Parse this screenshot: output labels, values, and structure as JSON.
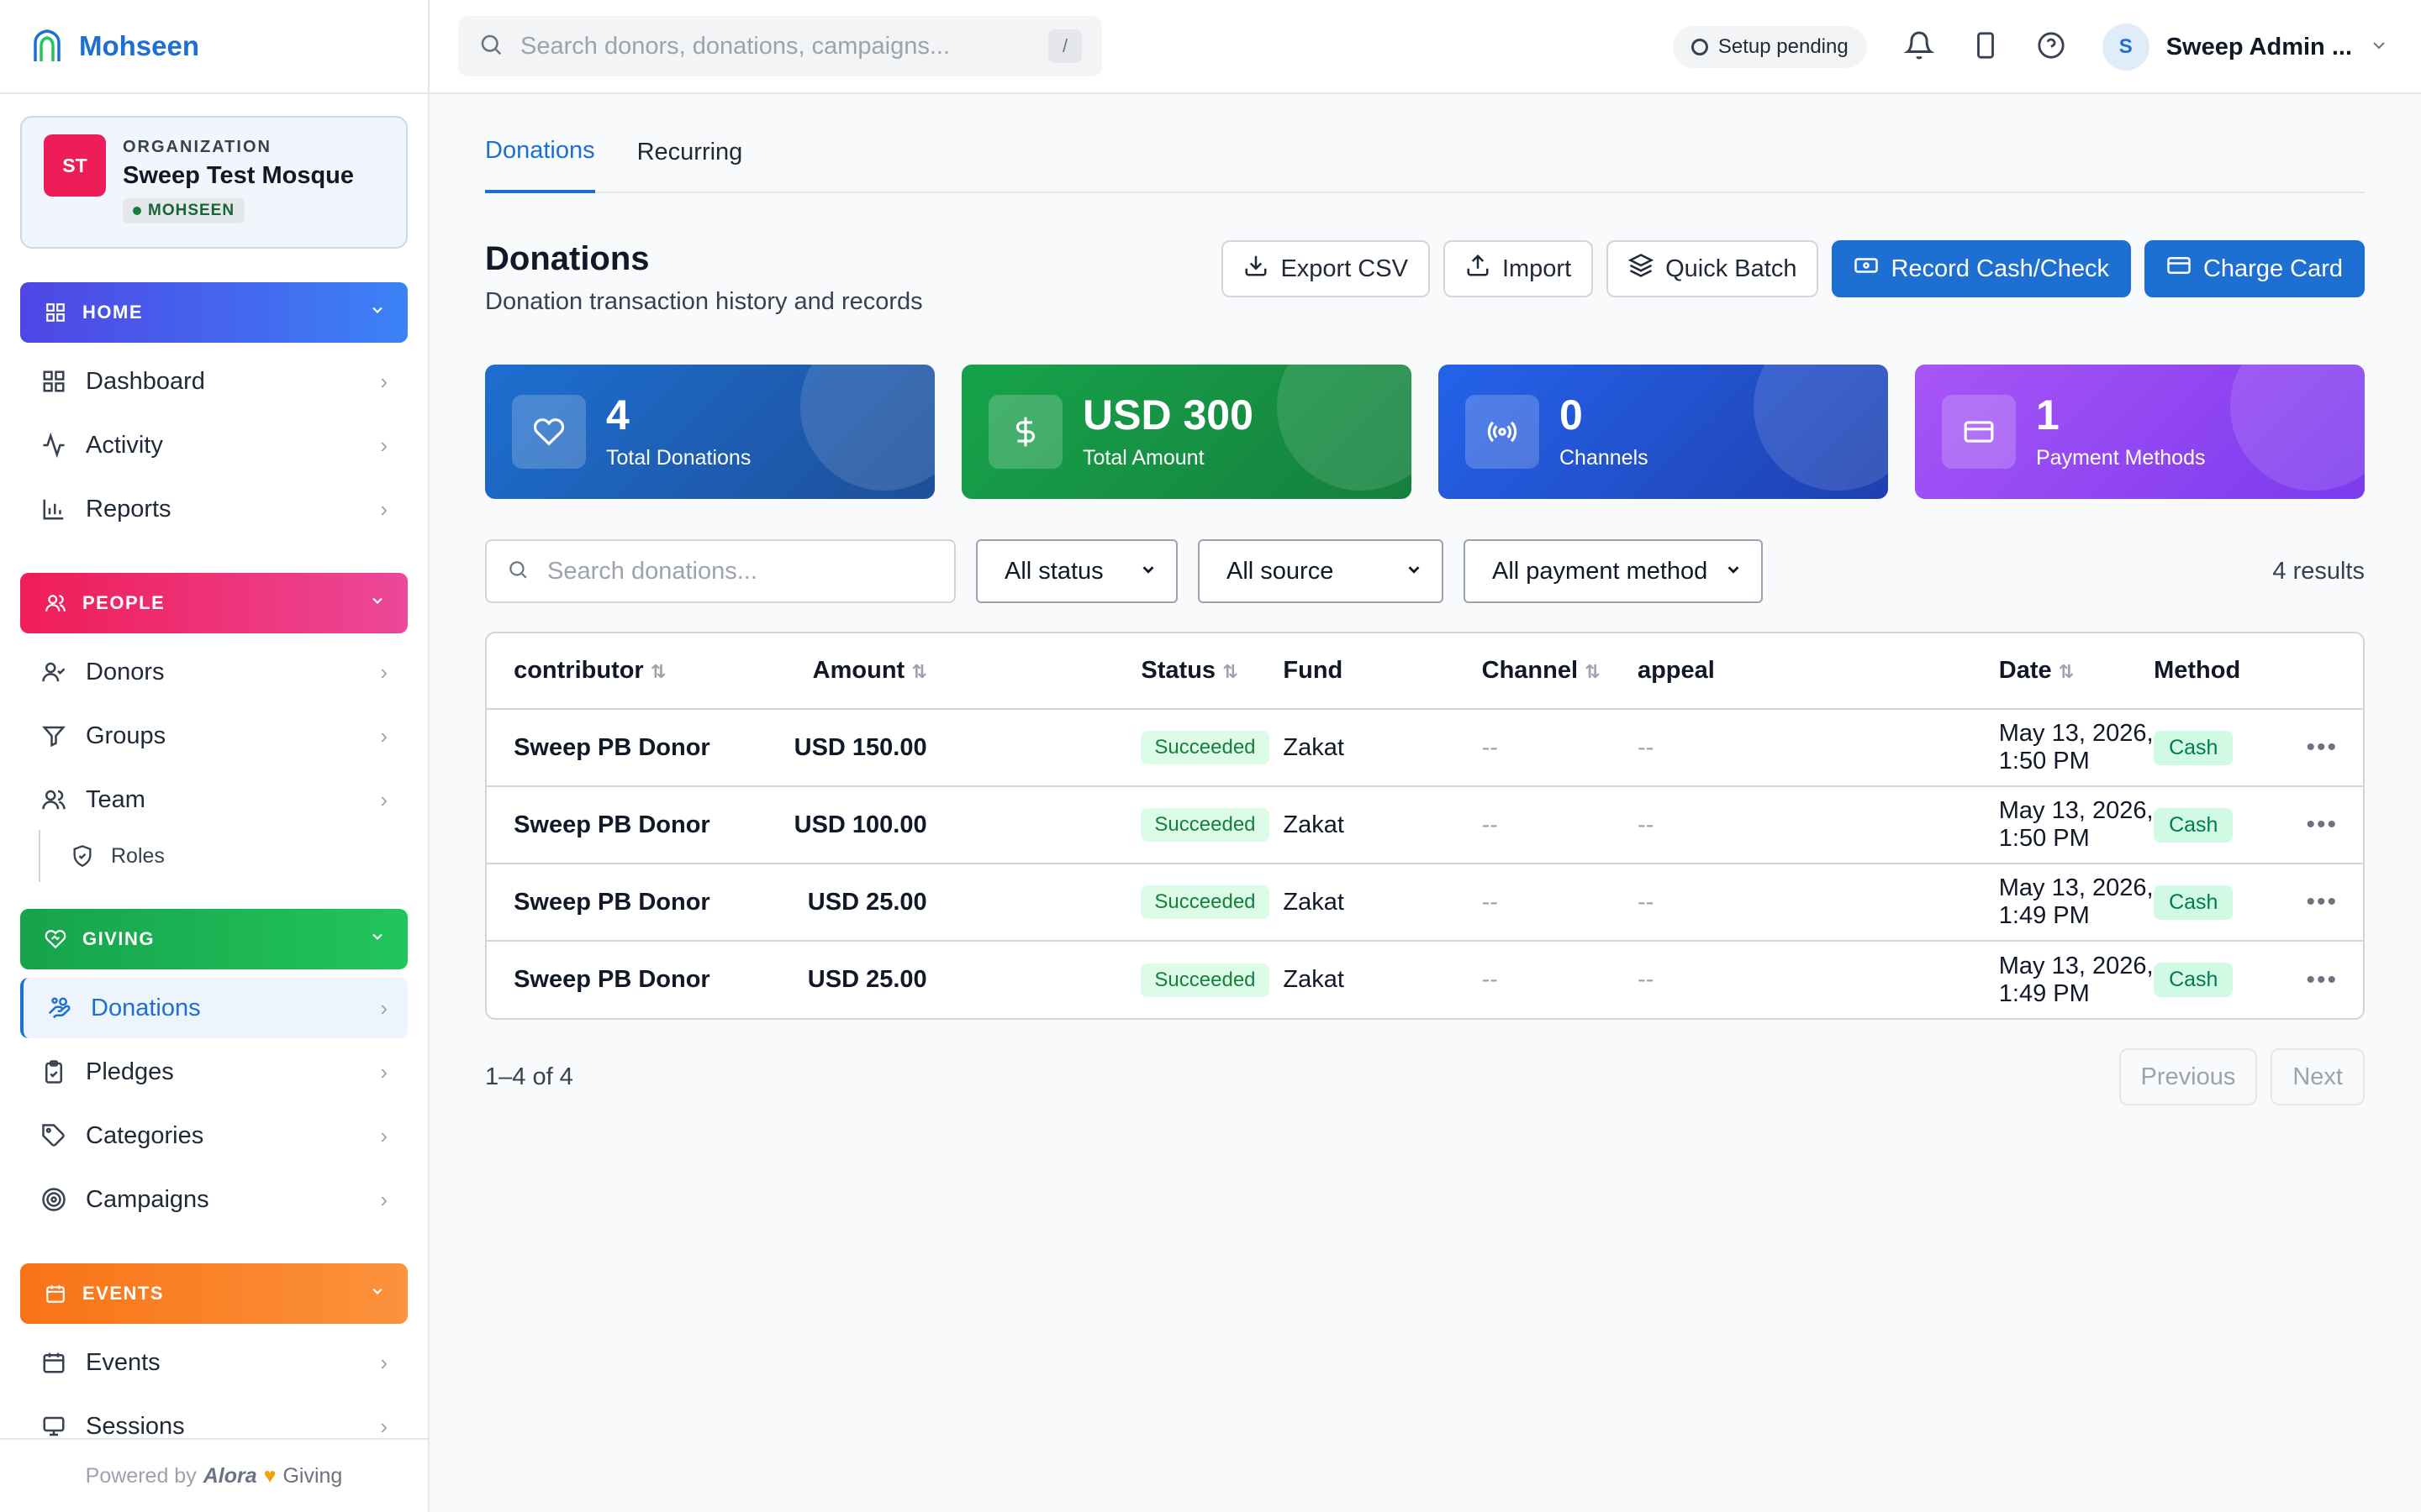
{
  "brand": {
    "name": "Mohseen"
  },
  "org": {
    "initials": "ST",
    "eyebrow": "ORGANIZATION",
    "name": "Sweep Test Mosque",
    "badge": "MOHSEEN"
  },
  "sidebar": {
    "home": {
      "label": "HOME",
      "items": [
        "Dashboard",
        "Activity",
        "Reports"
      ]
    },
    "people": {
      "label": "PEOPLE",
      "items": [
        "Donors",
        "Groups",
        "Team"
      ],
      "sub": "Roles"
    },
    "giving": {
      "label": "GIVING",
      "items": [
        "Donations",
        "Pledges",
        "Categories",
        "Campaigns"
      ]
    },
    "events": {
      "label": "EVENTS",
      "items": [
        "Events",
        "Sessions"
      ]
    },
    "powered_by": "Powered by",
    "powered_brand": "Alora",
    "powered_suffix": "Giving"
  },
  "topbar": {
    "search_placeholder": "Search donors, donations, campaigns...",
    "search_kbd": "/",
    "setup": "Setup pending",
    "user_initial": "S",
    "user_name": "Sweep Admin ..."
  },
  "tabs": [
    "Donations",
    "Recurring"
  ],
  "page": {
    "title": "Donations",
    "subtitle": "Donation transaction history and records",
    "actions": [
      "Export CSV",
      "Import",
      "Quick Batch",
      "Record Cash/Check",
      "Charge Card"
    ]
  },
  "stats": [
    {
      "value": "4",
      "label": "Total Donations"
    },
    {
      "value": "USD 300",
      "label": "Total Amount"
    },
    {
      "value": "0",
      "label": "Channels"
    },
    {
      "value": "1",
      "label": "Payment Methods"
    }
  ],
  "filters": {
    "search_placeholder": "Search donations...",
    "status": "All status",
    "source": "All source",
    "method": "All payment method",
    "results": "4 results"
  },
  "table": {
    "columns": [
      "contributor",
      "Amount",
      "Status",
      "Fund",
      "Channel",
      "appeal",
      "Date",
      "Method"
    ],
    "rows": [
      {
        "contributor": "Sweep PB Donor",
        "amount": "USD 150.00",
        "status": "Succeeded",
        "fund": "Zakat",
        "channel": "--",
        "appeal": "--",
        "date": "May 13, 2026, 1:50 PM",
        "method": "Cash"
      },
      {
        "contributor": "Sweep PB Donor",
        "amount": "USD 100.00",
        "status": "Succeeded",
        "fund": "Zakat",
        "channel": "--",
        "appeal": "--",
        "date": "May 13, 2026, 1:50 PM",
        "method": "Cash"
      },
      {
        "contributor": "Sweep PB Donor",
        "amount": "USD 25.00",
        "status": "Succeeded",
        "fund": "Zakat",
        "channel": "--",
        "appeal": "--",
        "date": "May 13, 2026, 1:49 PM",
        "method": "Cash"
      },
      {
        "contributor": "Sweep PB Donor",
        "amount": "USD 25.00",
        "status": "Succeeded",
        "fund": "Zakat",
        "channel": "--",
        "appeal": "--",
        "date": "May 13, 2026, 1:49 PM",
        "method": "Cash"
      }
    ]
  },
  "pager": {
    "count": "1–4 of 4",
    "prev": "Previous",
    "next": "Next"
  }
}
